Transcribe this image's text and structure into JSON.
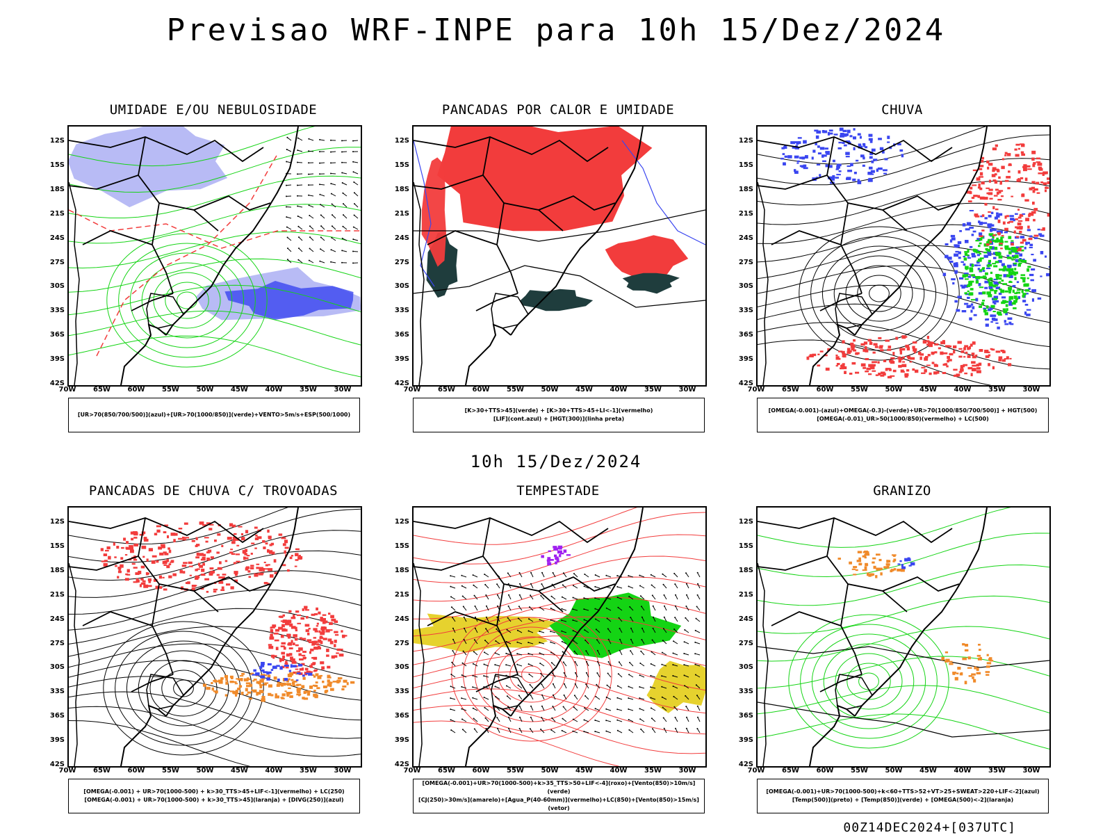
{
  "main_title": "Previsao WRF-INPE  para 10h 15/Dez/2024",
  "mid_title": "10h 15/Dez/2024",
  "footer": "00Z14DEC2024+[037UTC]",
  "lat_labels": [
    "12S",
    "15S",
    "18S",
    "21S",
    "24S",
    "27S",
    "30S",
    "33S",
    "36S",
    "39S",
    "42S"
  ],
  "lon_labels": [
    "70W",
    "65W",
    "60W",
    "55W",
    "50W",
    "45W",
    "40W",
    "35W",
    "30W"
  ],
  "colors": {
    "blue": "#3a46f0",
    "green": "#14d414",
    "red": "#f23c3c",
    "orange": "#f08a2a",
    "yellow": "#e6d22e",
    "darkgreen": "#1f3d3d",
    "purple": "#a020f0",
    "lightblue": "#b0b4f4"
  },
  "panels": [
    {
      "title": "UMIDADE E/OU NEBULOSIDADE",
      "legend": [
        "[UR>70(850/700/500)](azul)+[UR>70(1000/850)](verde)+VENTO>5m/s+ESP(500/1000)"
      ]
    },
    {
      "title": "PANCADAS POR CALOR E UMIDADE",
      "legend": [
        "[K>30+TTS>45](verde) + [K>30+TTS>45+LI<-1](vermelho)",
        "[LIF](cont.azul) + [HGT(300)](linha preta)"
      ]
    },
    {
      "title": "CHUVA",
      "legend": [
        "[OMEGA(-0.001)-(azul)+OMEGA(-0.3)-(verde)+UR>70(1000/850/700/500)] + HGT(500)",
        "[OMEGA(-0.01)_UR>50(1000/850)(vermelho) + LC(500)"
      ]
    },
    {
      "title": "PANCADAS DE CHUVA C/ TROVOADAS",
      "legend": [
        "[OMEGA(-0.001) + UR>70(1000-500) + k>30_TTS>45+LIF<-1](vermelho) + LC(250)",
        "[OMEGA(-0.001) + UR>70(1000-500) + k>30_TTS>45](laranja) + [DIVG(250)](azul)"
      ]
    },
    {
      "title": "TEMPESTADE",
      "legend": [
        "[OMEGA(-0.001)+UR>70(1000-500)+k>35_TTS>50+LIF<-4](roxo)+[Vento(850)>10m/s](verde)",
        "[CJ(250)>30m/s](amarelo)+[Agua_P(40-60mm)](vermelho)+LC(850)+[Vento(850)>15m/s](vetor)"
      ]
    },
    {
      "title": "GRANIZO",
      "legend": [
        "[OMEGA(-0.001)+UR>70(1000-500)+k<60+TTS>52+VT>25+SWEAT>220+LIF<-2](azul)",
        "[Temp(500)](preto) + [Temp(850)](verde) + [OMEGA(500)<-2](laranja)"
      ]
    }
  ]
}
